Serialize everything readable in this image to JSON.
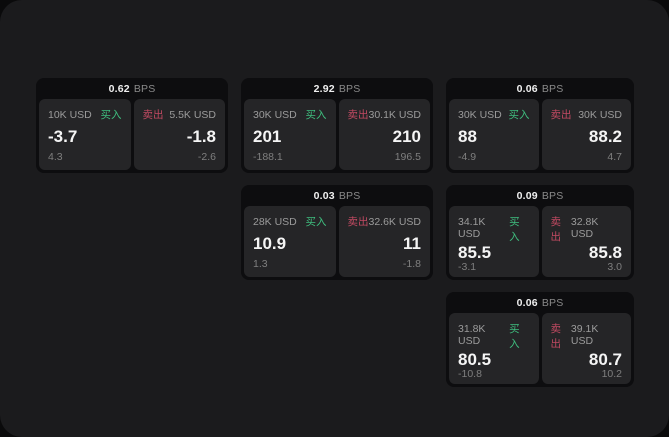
{
  "labels": {
    "bps": "BPS",
    "buy": "买入",
    "sell": "卖出"
  },
  "colors": {
    "buy": "#3fbf7f",
    "sell": "#c24a62",
    "app_bg": "#1b1b1d",
    "card_bg": "#0d0d0f",
    "panel_bg": "#252527"
  },
  "cards": [
    {
      "bps": "0.62",
      "buy": {
        "amount": "10K USD",
        "value": "-3.7",
        "delta": "4.3"
      },
      "sell": {
        "amount": "5.5K USD",
        "value": "-1.8",
        "delta": "-2.6"
      }
    },
    {
      "bps": "2.92",
      "buy": {
        "amount": "30K USD",
        "value": "201",
        "delta": "-188.1"
      },
      "sell": {
        "amount": "30.1K USD",
        "value": "210",
        "delta": "196.5"
      }
    },
    {
      "bps": "0.06",
      "buy": {
        "amount": "30K USD",
        "value": "88",
        "delta": "-4.9"
      },
      "sell": {
        "amount": "30K USD",
        "value": "88.2",
        "delta": "4.7"
      }
    },
    {
      "bps": "0.03",
      "buy": {
        "amount": "28K USD",
        "value": "10.9",
        "delta": "1.3"
      },
      "sell": {
        "amount": "32.6K USD",
        "value": "11",
        "delta": "-1.8"
      }
    },
    {
      "bps": "0.09",
      "buy": {
        "amount": "34.1K USD",
        "value": "85.5",
        "delta": "-3.1"
      },
      "sell": {
        "amount": "32.8K USD",
        "value": "85.8",
        "delta": "3.0"
      }
    },
    {
      "bps": "0.06",
      "buy": {
        "amount": "31.8K USD",
        "value": "80.5",
        "delta": "-10.8"
      },
      "sell": {
        "amount": "39.1K USD",
        "value": "80.7",
        "delta": "10.2"
      }
    }
  ]
}
